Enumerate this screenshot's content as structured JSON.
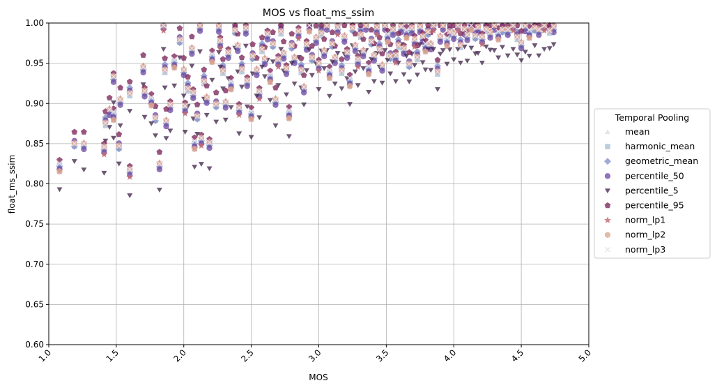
{
  "chart_data": {
    "type": "scatter",
    "title": "MOS vs float_ms_ssim",
    "xlabel": "MOS",
    "ylabel": "float_ms_ssim",
    "xlim": [
      1.0,
      5.0
    ],
    "ylim": [
      0.6,
      1.0
    ],
    "xticks": [
      "1.0",
      "1.5",
      "2.0",
      "2.5",
      "3.0",
      "3.5",
      "4.0",
      "4.5",
      "5.0"
    ],
    "yticks": [
      "0.60",
      "0.65",
      "0.70",
      "0.75",
      "0.80",
      "0.85",
      "0.90",
      "0.95",
      "1.00"
    ],
    "grid": true,
    "legend": {
      "title": "Temporal Pooling",
      "placement": "center-right-outside"
    },
    "base_points": [
      [
        1.08,
        0.819
      ],
      [
        1.19,
        0.851
      ],
      [
        1.26,
        0.848
      ],
      [
        1.41,
        0.841
      ],
      [
        1.42,
        0.878
      ],
      [
        1.45,
        0.892
      ],
      [
        1.48,
        0.93
      ],
      [
        1.48,
        0.883
      ],
      [
        1.52,
        0.848
      ],
      [
        1.53,
        0.903
      ],
      [
        1.6,
        0.813
      ],
      [
        1.6,
        0.915
      ],
      [
        1.7,
        0.945
      ],
      [
        1.71,
        0.912
      ],
      [
        1.76,
        0.901
      ],
      [
        1.79,
        0.883
      ],
      [
        1.82,
        0.823
      ],
      [
        1.85,
        0.995
      ],
      [
        1.86,
        0.944
      ],
      [
        1.87,
        0.878
      ],
      [
        1.9,
        0.895
      ],
      [
        1.93,
        0.948
      ],
      [
        1.97,
        0.98
      ],
      [
        2.0,
        0.94
      ],
      [
        2.01,
        0.892
      ],
      [
        2.03,
        0.921
      ],
      [
        2.06,
        0.968
      ],
      [
        2.07,
        0.91
      ],
      [
        2.08,
        0.847
      ],
      [
        2.1,
        0.885
      ],
      [
        2.12,
        0.995
      ],
      [
        2.13,
        0.852
      ],
      [
        2.15,
        0.93
      ],
      [
        2.17,
        0.907
      ],
      [
        2.19,
        0.848
      ],
      [
        2.21,
        0.955
      ],
      [
        2.24,
        0.9
      ],
      [
        2.26,
        0.994
      ],
      [
        2.27,
        0.973
      ],
      [
        2.29,
        0.943
      ],
      [
        2.31,
        0.901
      ],
      [
        2.33,
        0.96
      ],
      [
        2.35,
        0.921
      ],
      [
        2.38,
        0.992
      ],
      [
        2.4,
        0.97
      ],
      [
        2.41,
        0.89
      ],
      [
        2.43,
        0.945
      ],
      [
        2.46,
        0.993
      ],
      [
        2.47,
        0.925
      ],
      [
        2.5,
        0.884
      ],
      [
        2.51,
        0.96
      ],
      [
        2.54,
        0.94
      ],
      [
        2.56,
        0.91
      ],
      [
        2.58,
        0.97
      ],
      [
        2.6,
        0.955
      ],
      [
        2.62,
        0.983
      ],
      [
        2.64,
        0.93
      ],
      [
        2.66,
        0.975
      ],
      [
        2.68,
        0.903
      ],
      [
        2.7,
        0.95
      ],
      [
        2.72,
        0.992
      ],
      [
        2.74,
        0.962
      ],
      [
        2.76,
        0.94
      ],
      [
        2.78,
        0.885
      ],
      [
        2.8,
        0.973
      ],
      [
        2.82,
        0.955
      ],
      [
        2.85,
        0.985
      ],
      [
        2.87,
        0.944
      ],
      [
        2.89,
        0.92
      ],
      [
        2.91,
        0.97
      ],
      [
        2.93,
        0.993
      ],
      [
        2.95,
        0.958
      ],
      [
        2.98,
        0.98
      ],
      [
        3.0,
        0.945
      ],
      [
        3.02,
        0.99
      ],
      [
        3.04,
        0.965
      ],
      [
        3.06,
        0.995
      ],
      [
        3.08,
        0.935
      ],
      [
        3.1,
        0.975
      ],
      [
        3.12,
        0.955
      ],
      [
        3.14,
        0.99
      ],
      [
        3.17,
        0.943
      ],
      [
        3.19,
        0.983
      ],
      [
        3.21,
        0.96
      ],
      [
        3.23,
        0.925
      ],
      [
        3.25,
        0.995
      ],
      [
        3.27,
        0.97
      ],
      [
        3.29,
        0.95
      ],
      [
        3.31,
        0.988
      ],
      [
        3.33,
        0.965
      ],
      [
        3.35,
        0.995
      ],
      [
        3.37,
        0.94
      ],
      [
        3.39,
        0.978
      ],
      [
        3.41,
        0.958
      ],
      [
        3.43,
        0.99
      ],
      [
        3.45,
        0.97
      ],
      [
        3.47,
        0.947
      ],
      [
        3.49,
        0.995
      ],
      [
        3.51,
        0.98
      ],
      [
        3.53,
        0.96
      ],
      [
        3.55,
        0.99
      ],
      [
        3.57,
        0.955
      ],
      [
        3.59,
        0.975
      ],
      [
        3.61,
        0.995
      ],
      [
        3.63,
        0.965
      ],
      [
        3.65,
        0.985
      ],
      [
        3.67,
        0.95
      ],
      [
        3.69,
        0.992
      ],
      [
        3.71,
        0.975
      ],
      [
        3.73,
        0.96
      ],
      [
        3.75,
        0.995
      ],
      [
        3.77,
        0.98
      ],
      [
        3.79,
        0.968
      ],
      [
        3.81,
        0.99
      ],
      [
        3.83,
        0.972
      ],
      [
        3.85,
        0.995
      ],
      [
        3.88,
        0.942
      ],
      [
        3.9,
        0.983
      ],
      [
        3.92,
        0.995
      ],
      [
        3.95,
        0.975
      ],
      [
        3.97,
        0.99
      ],
      [
        4.0,
        0.985
      ],
      [
        4.03,
        0.995
      ],
      [
        4.05,
        0.975
      ],
      [
        4.08,
        0.992
      ],
      [
        4.1,
        0.982
      ],
      [
        4.13,
        0.995
      ],
      [
        4.16,
        0.985
      ],
      [
        4.18,
        0.993
      ],
      [
        4.21,
        0.978
      ],
      [
        4.24,
        0.995
      ],
      [
        4.27,
        0.988
      ],
      [
        4.3,
        0.995
      ],
      [
        4.33,
        0.983
      ],
      [
        4.36,
        0.993
      ],
      [
        4.4,
        0.99
      ],
      [
        4.44,
        0.995
      ],
      [
        4.47,
        0.985
      ],
      [
        4.5,
        0.975
      ],
      [
        4.53,
        0.993
      ],
      [
        4.56,
        0.985
      ],
      [
        4.6,
        0.995
      ],
      [
        4.63,
        0.99
      ],
      [
        4.67,
        0.995
      ],
      [
        4.71,
        0.993
      ],
      [
        4.74,
        0.995
      ]
    ],
    "series": [
      {
        "name": "mean",
        "marker": "triangle-up",
        "color": "#ded8e6",
        "opacity": 0.75,
        "offset": 0.0
      },
      {
        "name": "harmonic_mean",
        "marker": "square",
        "color": "#a3bcd1",
        "opacity": 0.75,
        "offset": -0.001
      },
      {
        "name": "geometric_mean",
        "marker": "diamond",
        "color": "#7f8fc9",
        "opacity": 0.75,
        "offset": 0.0
      },
      {
        "name": "percentile_50",
        "marker": "circle",
        "color": "#6a46a0",
        "opacity": 0.75,
        "offset": -0.002
      },
      {
        "name": "percentile_5",
        "marker": "triangle-down",
        "color": "#3c1f45",
        "opacity": 0.75,
        "offset": -0.026
      },
      {
        "name": "percentile_95",
        "marker": "pentagon",
        "color": "#7e2a5c",
        "opacity": 0.8,
        "offset": 0.012
      },
      {
        "name": "norm_lp1",
        "marker": "star",
        "color": "#c0666f",
        "opacity": 0.8,
        "offset": 0.0
      },
      {
        "name": "norm_lp2",
        "marker": "hexagon",
        "color": "#dbaa95",
        "opacity": 0.8,
        "offset": 0.001
      },
      {
        "name": "norm_lp3",
        "marker": "x",
        "color": "#ebe0ea",
        "opacity": 0.85,
        "offset": 0.002
      }
    ]
  }
}
